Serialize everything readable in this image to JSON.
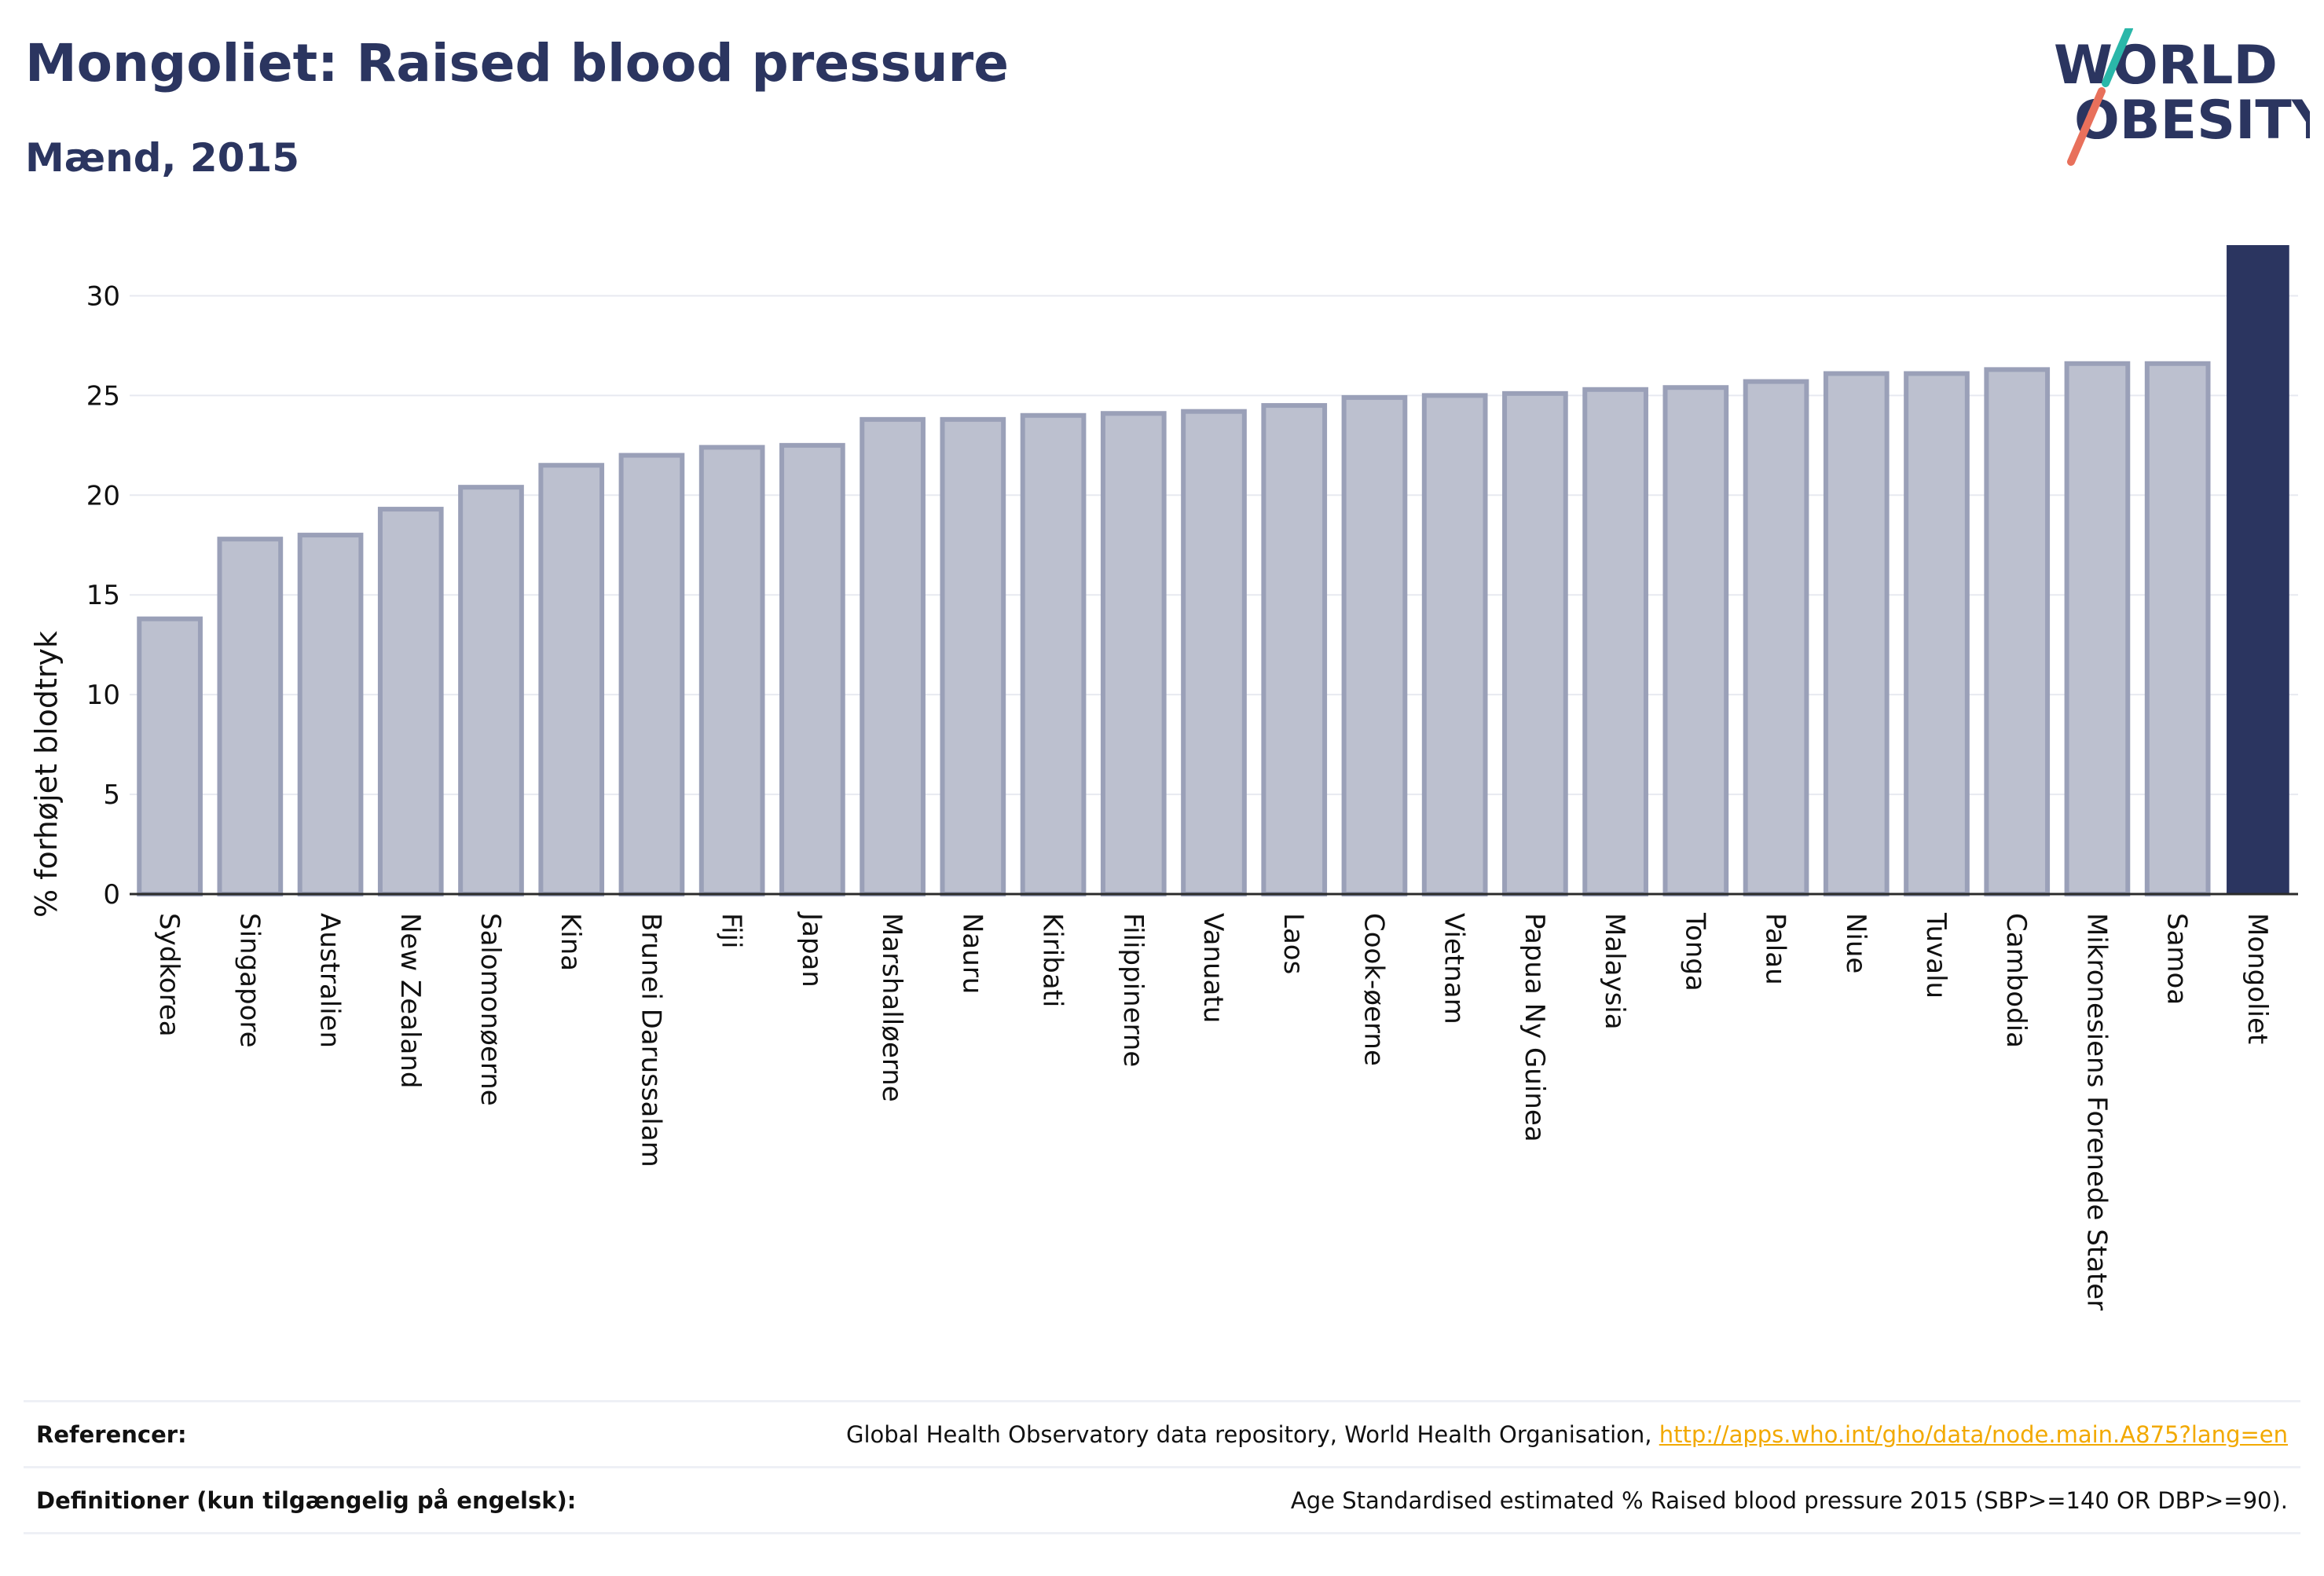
{
  "header": {
    "title": "Mongoliet: Raised blood pressure",
    "subtitle": "Mænd, 2015"
  },
  "logo": {
    "line1": "WORLD",
    "line2": "OBESITY"
  },
  "colors": {
    "title": "#2b3560",
    "bar_default_fill": "#bcc0cf",
    "bar_default_stroke": "#9aa0b8",
    "bar_highlight": "#2b3560",
    "grid": "#e7e9f0",
    "link": "#f2a900",
    "logo_teal": "#2ab7a9",
    "logo_coral": "#e8705b"
  },
  "chart_data": {
    "type": "bar",
    "title": "Mongoliet: Raised blood pressure",
    "subtitle": "Mænd, 2015",
    "xlabel": "",
    "ylabel": "% forhøjet blodtryk",
    "ylim": [
      0,
      32.5
    ],
    "yticks": [
      0,
      5,
      10,
      15,
      20,
      25,
      30
    ],
    "grid": true,
    "highlight": "Mongoliet",
    "categories": [
      "Sydkorea",
      "Singapore",
      "Australien",
      "New Zealand",
      "Salomonøerne",
      "Kina",
      "Brunei Darussalam",
      "Fiji",
      "Japan",
      "Marshalløerne",
      "Nauru",
      "Kiribati",
      "Filippinerne",
      "Vanuatu",
      "Laos",
      "Cook-øerne",
      "Vietnam",
      "Papua Ny Guinea",
      "Malaysia",
      "Tonga",
      "Palau",
      "Niue",
      "Tuvalu",
      "Cambodia",
      "Mikronesiens Forenede Stater",
      "Samoa",
      "Mongoliet"
    ],
    "values": [
      13.8,
      17.8,
      18.0,
      19.3,
      20.4,
      21.5,
      22.0,
      22.4,
      22.5,
      23.8,
      23.8,
      24.0,
      24.1,
      24.2,
      24.5,
      24.9,
      25.0,
      25.1,
      25.3,
      25.4,
      25.7,
      26.1,
      26.1,
      26.3,
      26.6,
      26.6,
      32.5
    ]
  },
  "footer": {
    "references_label": "Referencer:",
    "references_text": "Global Health Observatory data repository, World Health Organisation, ",
    "references_link": "http://apps.who.int/gho/data/node.main.A875?lang=en",
    "definitions_label": "Definitioner (kun tilgængelig på engelsk):",
    "definitions_text": "Age Standardised estimated % Raised blood pressure 2015 (SBP>=140 OR DBP>=90)."
  }
}
